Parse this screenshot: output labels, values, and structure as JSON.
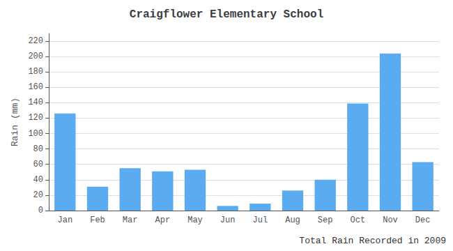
{
  "chart_data": {
    "type": "bar",
    "title": "Craigflower Elementary School",
    "xlabel": "Total Rain Recorded in 2009",
    "ylabel": "Rain (mm)",
    "categories": [
      "Jan",
      "Feb",
      "Mar",
      "Apr",
      "May",
      "Jun",
      "Jul",
      "Aug",
      "Sep",
      "Oct",
      "Nov",
      "Dec"
    ],
    "values": [
      126,
      31,
      55,
      51,
      53,
      6,
      9,
      26,
      40,
      139,
      204,
      63
    ],
    "color": "#5aabf0",
    "ylim": [
      0,
      230
    ],
    "yticks": [
      0,
      20,
      40,
      60,
      80,
      100,
      120,
      140,
      160,
      180,
      200,
      220
    ],
    "grid": true
  }
}
